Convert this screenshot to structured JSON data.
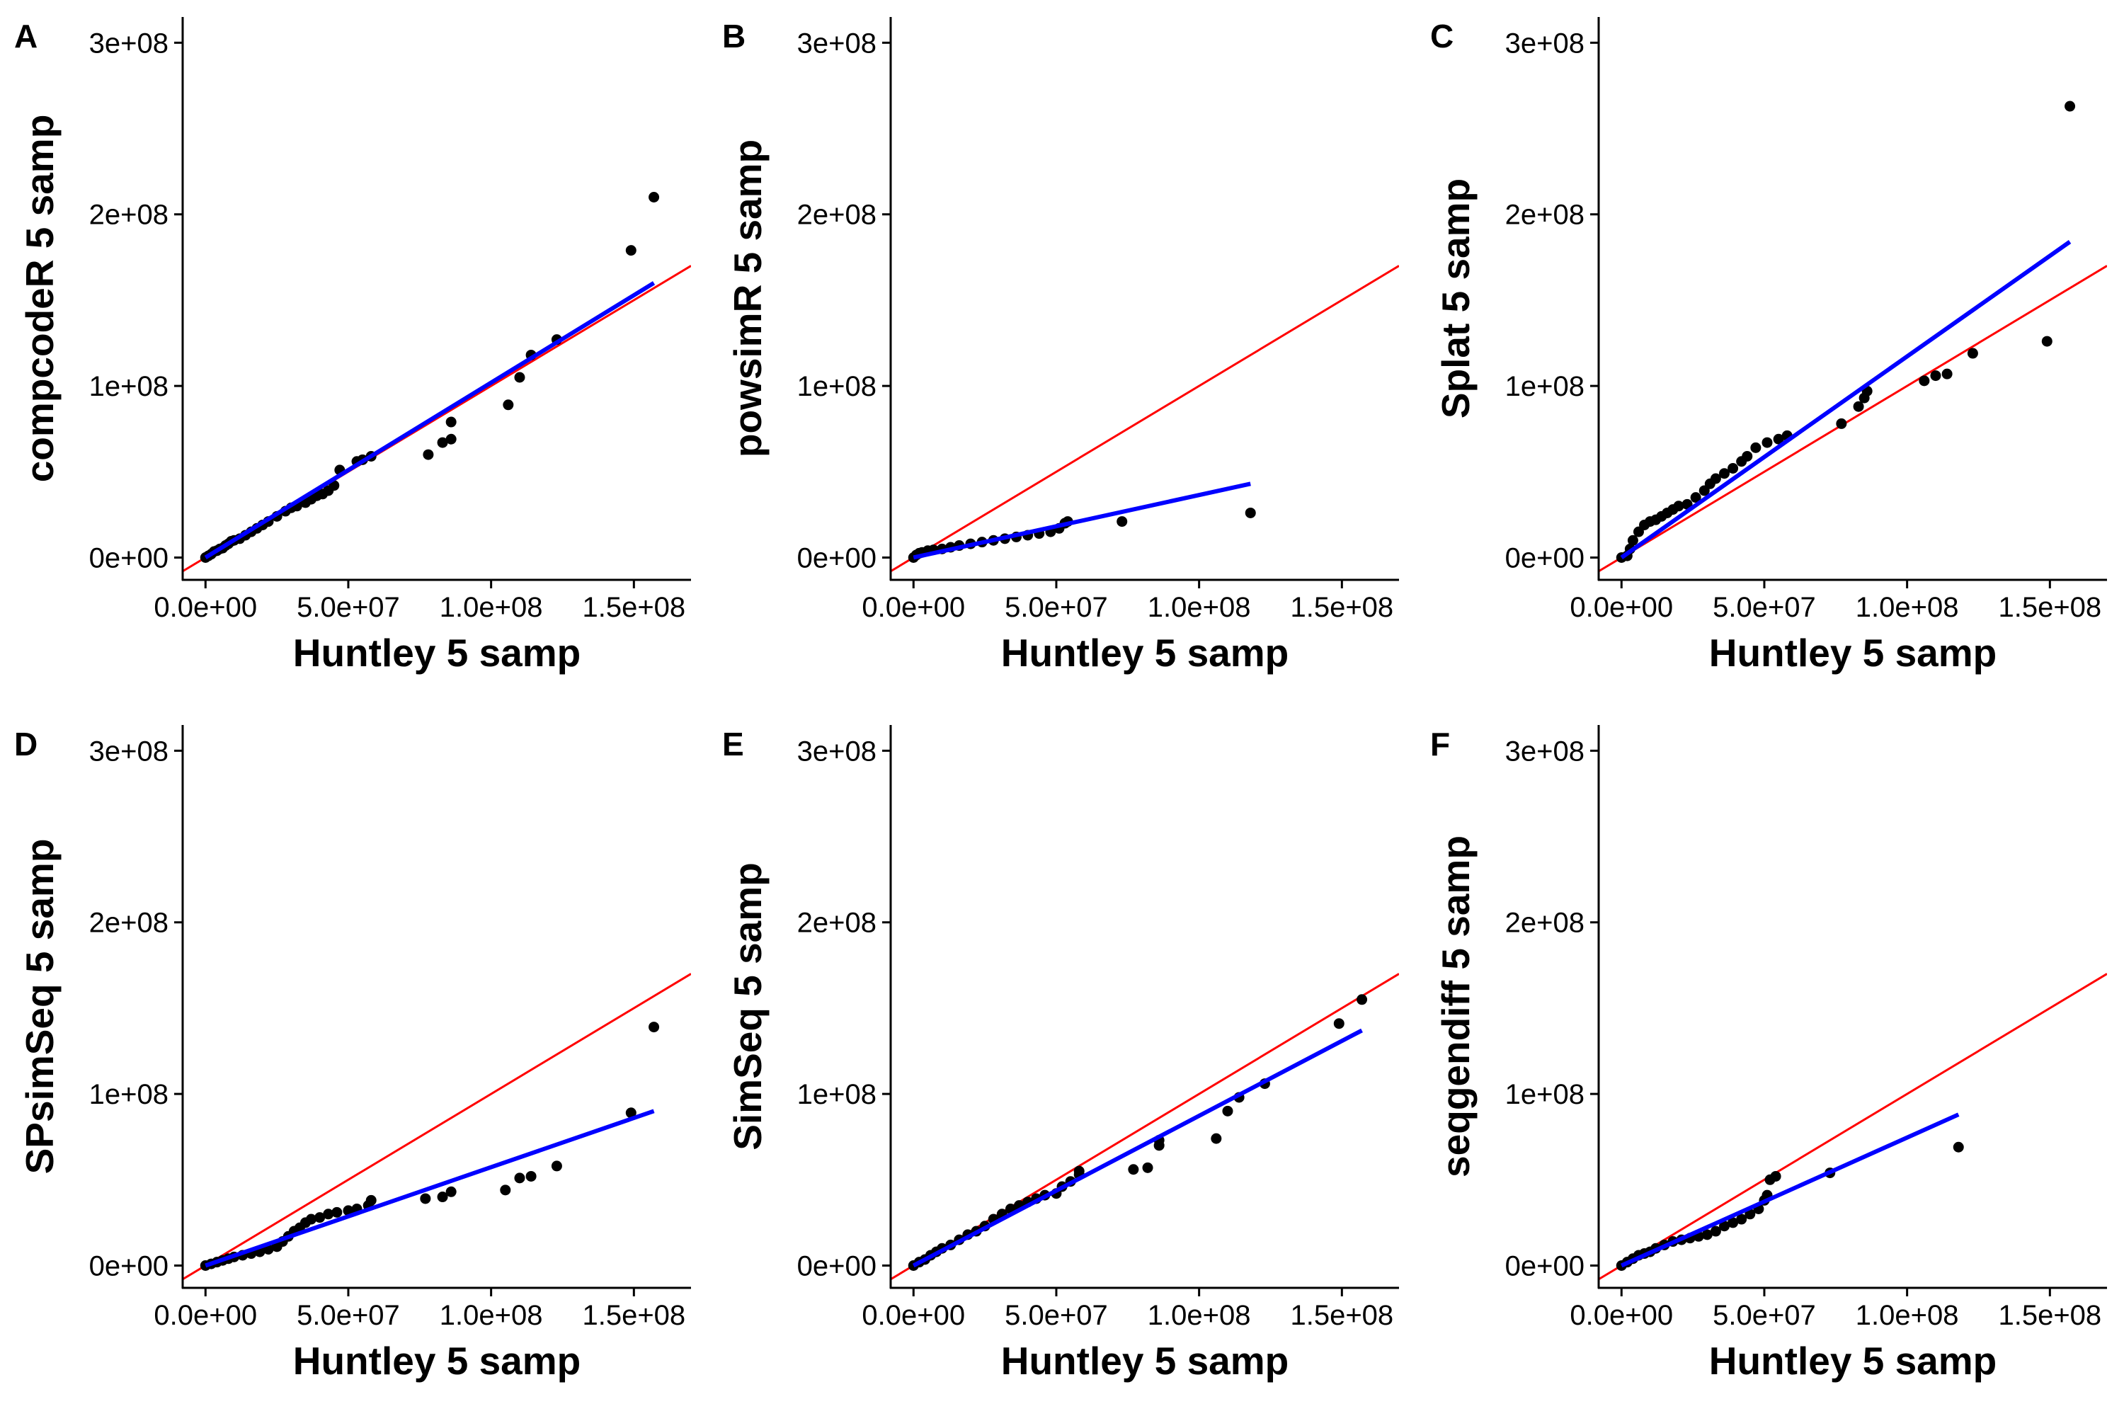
{
  "colors": {
    "identity_line": "#ff0000",
    "fit_line": "#0000ff",
    "points": "#000000",
    "axis": "#000000",
    "background": "#ffffff"
  },
  "chart_data": [
    {
      "panel": "A",
      "type": "scatter",
      "xlabel": "Huntley 5 samp",
      "ylabel": "compcodeR 5 samp",
      "xlim": [
        -8000000.0,
        170000000.0
      ],
      "ylim": [
        -13000000.0,
        315000000.0
      ],
      "xticks": [
        0,
        50000000.0,
        100000000.0,
        150000000.0
      ],
      "xtick_labels": [
        "0.0e+00",
        "5.0e+07",
        "1.0e+08",
        "1.5e+08"
      ],
      "yticks": [
        0,
        100000000.0,
        200000000.0,
        300000000.0
      ],
      "ytick_labels": [
        "0e+00",
        "1e+08",
        "2e+08",
        "3e+08"
      ],
      "grid": false,
      "reference_line": {
        "intercept": 0,
        "slope": 1
      },
      "fit_line": {
        "x": [
          0,
          157000000.0
        ],
        "y": [
          0,
          160000000.0
        ]
      },
      "points": [
        [
          0,
          0
        ],
        [
          1000000.0,
          1000000.0
        ],
        [
          2000000.0,
          2000000.0
        ],
        [
          3000000.0,
          3500000.0
        ],
        [
          4000000.0,
          4000000.0
        ],
        [
          5000000.0,
          5000000.0
        ],
        [
          6000000.0,
          5500000.0
        ],
        [
          7000000.0,
          7000000.0
        ],
        [
          8000000.0,
          8000000.0
        ],
        [
          9000000.0,
          9500000.0
        ],
        [
          10000000.0,
          10000000.0
        ],
        [
          12000000.0,
          11000000.0
        ],
        [
          14000000.0,
          13000000.0
        ],
        [
          16000000.0,
          15000000.0
        ],
        [
          18000000.0,
          17000000.0
        ],
        [
          20000000.0,
          19000000.0
        ],
        [
          22000000.0,
          21000000.0
        ],
        [
          25000000.0,
          24000000.0
        ],
        [
          28000000.0,
          27000000.0
        ],
        [
          30000000.0,
          29000000.0
        ],
        [
          32000000.0,
          30000000.0
        ],
        [
          35000000.0,
          32000000.0
        ],
        [
          37000000.0,
          34000000.0
        ],
        [
          39000000.0,
          36000000.0
        ],
        [
          41000000.0,
          37000000.0
        ],
        [
          43000000.0,
          39000000.0
        ],
        [
          45000000.0,
          42000000.0
        ],
        [
          47000000.0,
          51000000.0
        ],
        [
          53000000.0,
          56000000.0
        ],
        [
          55000000.0,
          57000000.0
        ],
        [
          58000000.0,
          59000000.0
        ],
        [
          78000000.0,
          60000000.0
        ],
        [
          83000000.0,
          67000000.0
        ],
        [
          86000000.0,
          69000000.0
        ],
        [
          86000000.0,
          79000000.0
        ],
        [
          106000000.0,
          89000000.0
        ],
        [
          110000000.0,
          105000000.0
        ],
        [
          114000000.0,
          118000000.0
        ],
        [
          123000000.0,
          127000000.0
        ],
        [
          149000000.0,
          179000000.0
        ],
        [
          157000000.0,
          210000000.0
        ]
      ]
    },
    {
      "panel": "B",
      "type": "scatter",
      "xlabel": "Huntley 5 samp",
      "ylabel": "powsimR 5 samp",
      "xlim": [
        -8000000.0,
        170000000.0
      ],
      "ylim": [
        -13000000.0,
        315000000.0
      ],
      "xticks": [
        0,
        50000000.0,
        100000000.0,
        150000000.0
      ],
      "xtick_labels": [
        "0.0e+00",
        "5.0e+07",
        "1.0e+08",
        "1.5e+08"
      ],
      "yticks": [
        0,
        100000000.0,
        200000000.0,
        300000000.0
      ],
      "ytick_labels": [
        "0e+00",
        "1e+08",
        "2e+08",
        "3e+08"
      ],
      "grid": false,
      "reference_line": {
        "intercept": 0,
        "slope": 1
      },
      "fit_line": {
        "x": [
          0,
          118000000.0
        ],
        "y": [
          0,
          43000000.0
        ]
      },
      "points": [
        [
          0,
          0
        ],
        [
          1000000.0,
          1500000.0
        ],
        [
          2000000.0,
          2500000.0
        ],
        [
          3000000.0,
          3000000.0
        ],
        [
          5000000.0,
          4000000.0
        ],
        [
          7000000.0,
          4500000.0
        ],
        [
          10000000.0,
          5000000.0
        ],
        [
          13000000.0,
          6000000.0
        ],
        [
          16000000.0,
          7000000.0
        ],
        [
          20000000.0,
          8000000.0
        ],
        [
          24000000.0,
          9000000.0
        ],
        [
          28000000.0,
          10000000.0
        ],
        [
          32000000.0,
          11000000.0
        ],
        [
          36000000.0,
          12000000.0
        ],
        [
          40000000.0,
          13000000.0
        ],
        [
          44000000.0,
          14000000.0
        ],
        [
          48000000.0,
          15000000.0
        ],
        [
          51000000.0,
          17000000.0
        ],
        [
          53000000.0,
          20000000.0
        ],
        [
          54000000.0,
          21000000.0
        ],
        [
          73000000.0,
          21000000.0
        ],
        [
          118000000.0,
          26000000.0
        ]
      ]
    },
    {
      "panel": "C",
      "type": "scatter",
      "xlabel": "Huntley 5 samp",
      "ylabel": "Splat 5 samp",
      "xlim": [
        -8000000.0,
        170000000.0
      ],
      "ylim": [
        -13000000.0,
        315000000.0
      ],
      "xticks": [
        0,
        50000000.0,
        100000000.0,
        150000000.0
      ],
      "xtick_labels": [
        "0.0e+00",
        "5.0e+07",
        "1.0e+08",
        "1.5e+08"
      ],
      "yticks": [
        0,
        100000000.0,
        200000000.0,
        300000000.0
      ],
      "ytick_labels": [
        "0e+00",
        "1e+08",
        "2e+08",
        "3e+08"
      ],
      "grid": false,
      "reference_line": {
        "intercept": 0,
        "slope": 1
      },
      "fit_line": {
        "x": [
          0,
          157000000.0
        ],
        "y": [
          0,
          184000000.0
        ]
      },
      "points": [
        [
          0,
          0
        ],
        [
          2000000.0,
          1000000.0
        ],
        [
          3000000.0,
          5000000.0
        ],
        [
          4000000.0,
          10000000.0
        ],
        [
          6000000.0,
          15000000.0
        ],
        [
          8000000.0,
          19000000.0
        ],
        [
          10000000.0,
          21000000.0
        ],
        [
          12000000.0,
          22000000.0
        ],
        [
          14000000.0,
          24000000.0
        ],
        [
          16000000.0,
          26000000.0
        ],
        [
          18000000.0,
          28000000.0
        ],
        [
          20000000.0,
          30000000.0
        ],
        [
          23000000.0,
          31000000.0
        ],
        [
          26000000.0,
          35000000.0
        ],
        [
          29000000.0,
          39000000.0
        ],
        [
          31000000.0,
          43000000.0
        ],
        [
          33000000.0,
          46000000.0
        ],
        [
          36000000.0,
          49000000.0
        ],
        [
          39000000.0,
          52000000.0
        ],
        [
          42000000.0,
          56000000.0
        ],
        [
          44000000.0,
          59000000.0
        ],
        [
          47000000.0,
          64000000.0
        ],
        [
          51000000.0,
          67000000.0
        ],
        [
          55000000.0,
          69000000.0
        ],
        [
          58000000.0,
          71000000.0
        ],
        [
          77000000.0,
          78000000.0
        ],
        [
          83000000.0,
          88000000.0
        ],
        [
          85000000.0,
          93000000.0
        ],
        [
          86000000.0,
          97000000.0
        ],
        [
          106000000.0,
          103000000.0
        ],
        [
          110000000.0,
          106000000.0
        ],
        [
          114000000.0,
          107000000.0
        ],
        [
          123000000.0,
          119000000.0
        ],
        [
          149000000.0,
          126000000.0
        ],
        [
          157000000.0,
          263000000.0
        ]
      ]
    },
    {
      "panel": "D",
      "type": "scatter",
      "xlabel": "Huntley 5 samp",
      "ylabel": "SPsimSeq 5 samp",
      "xlim": [
        -8000000.0,
        170000000.0
      ],
      "ylim": [
        -13000000.0,
        315000000.0
      ],
      "xticks": [
        0,
        50000000.0,
        100000000.0,
        150000000.0
      ],
      "xtick_labels": [
        "0.0e+00",
        "5.0e+07",
        "1.0e+08",
        "1.5e+08"
      ],
      "yticks": [
        0,
        100000000.0,
        200000000.0,
        300000000.0
      ],
      "ytick_labels": [
        "0e+00",
        "1e+08",
        "2e+08",
        "3e+08"
      ],
      "grid": false,
      "reference_line": {
        "intercept": 0,
        "slope": 1
      },
      "fit_line": {
        "x": [
          0,
          157000000.0
        ],
        "y": [
          0,
          90000000.0
        ]
      },
      "points": [
        [
          0,
          0
        ],
        [
          2000000.0,
          1000000.0
        ],
        [
          4000000.0,
          2000000.0
        ],
        [
          6000000.0,
          3000000.0
        ],
        [
          8000000.0,
          4000000.0
        ],
        [
          10000000.0,
          5000000.0
        ],
        [
          13000000.0,
          6000000.0
        ],
        [
          16000000.0,
          7000000.0
        ],
        [
          19000000.0,
          8000000.0
        ],
        [
          22000000.0,
          9500000.0
        ],
        [
          25000000.0,
          11000000.0
        ],
        [
          27000000.0,
          14000000.0
        ],
        [
          29000000.0,
          17000000.0
        ],
        [
          31000000.0,
          20000000.0
        ],
        [
          33000000.0,
          22000000.0
        ],
        [
          35000000.0,
          25000000.0
        ],
        [
          37000000.0,
          27000000.0
        ],
        [
          40000000.0,
          28000000.0
        ],
        [
          43000000.0,
          30000000.0
        ],
        [
          46000000.0,
          31000000.0
        ],
        [
          50000000.0,
          32000000.0
        ],
        [
          53000000.0,
          33000000.0
        ],
        [
          57000000.0,
          35000000.0
        ],
        [
          58000000.0,
          38000000.0
        ],
        [
          77000000.0,
          39000000.0
        ],
        [
          83000000.0,
          40000000.0
        ],
        [
          86000000.0,
          43000000.0
        ],
        [
          105000000.0,
          44000000.0
        ],
        [
          110000000.0,
          51000000.0
        ],
        [
          114000000.0,
          52000000.0
        ],
        [
          123000000.0,
          58000000.0
        ],
        [
          149000000.0,
          89000000.0
        ],
        [
          157000000.0,
          139000000.0
        ]
      ]
    },
    {
      "panel": "E",
      "type": "scatter",
      "xlabel": "Huntley 5 samp",
      "ylabel": "SimSeq 5 samp",
      "xlim": [
        -8000000.0,
        170000000.0
      ],
      "ylim": [
        -13000000.0,
        315000000.0
      ],
      "xticks": [
        0,
        50000000.0,
        100000000.0,
        150000000.0
      ],
      "xtick_labels": [
        "0.0e+00",
        "5.0e+07",
        "1.0e+08",
        "1.5e+08"
      ],
      "yticks": [
        0,
        100000000.0,
        200000000.0,
        300000000.0
      ],
      "ytick_labels": [
        "0e+00",
        "1e+08",
        "2e+08",
        "3e+08"
      ],
      "grid": false,
      "reference_line": {
        "intercept": 0,
        "slope": 1
      },
      "fit_line": {
        "x": [
          0,
          157000000.0
        ],
        "y": [
          0,
          137000000.0
        ]
      },
      "points": [
        [
          0,
          0
        ],
        [
          2000000.0,
          2000000.0
        ],
        [
          4000000.0,
          3500000.0
        ],
        [
          6000000.0,
          6000000.0
        ],
        [
          8000000.0,
          8000000.0
        ],
        [
          10000000.0,
          10000000.0
        ],
        [
          13000000.0,
          12000000.0
        ],
        [
          16000000.0,
          15000000.0
        ],
        [
          19000000.0,
          18000000.0
        ],
        [
          22000000.0,
          20000000.0
        ],
        [
          25000000.0,
          23000000.0
        ],
        [
          28000000.0,
          27000000.0
        ],
        [
          31000000.0,
          30000000.0
        ],
        [
          34000000.0,
          33000000.0
        ],
        [
          37000000.0,
          35000000.0
        ],
        [
          40000000.0,
          37000000.0
        ],
        [
          43000000.0,
          39000000.0
        ],
        [
          46000000.0,
          41000000.0
        ],
        [
          50000000.0,
          42000000.0
        ],
        [
          52000000.0,
          46000000.0
        ],
        [
          55000000.0,
          49000000.0
        ],
        [
          58000000.0,
          53000000.0
        ],
        [
          58000000.0,
          55000000.0
        ],
        [
          77000000.0,
          56000000.0
        ],
        [
          82000000.0,
          57000000.0
        ],
        [
          86000000.0,
          70000000.0
        ],
        [
          86000000.0,
          73000000.0
        ],
        [
          106000000.0,
          74000000.0
        ],
        [
          110000000.0,
          90000000.0
        ],
        [
          114000000.0,
          98000000.0
        ],
        [
          123000000.0,
          106000000.0
        ],
        [
          149000000.0,
          141000000.0
        ],
        [
          157000000.0,
          155000000.0
        ]
      ]
    },
    {
      "panel": "F",
      "type": "scatter",
      "xlabel": "Huntley 5 samp",
      "ylabel": "seqgendiff 5 samp",
      "xlim": [
        -8000000.0,
        170000000.0
      ],
      "ylim": [
        -13000000.0,
        315000000.0
      ],
      "xticks": [
        0,
        50000000.0,
        100000000.0,
        150000000.0
      ],
      "xtick_labels": [
        "0.0e+00",
        "5.0e+07",
        "1.0e+08",
        "1.5e+08"
      ],
      "yticks": [
        0,
        100000000.0,
        200000000.0,
        300000000.0
      ],
      "ytick_labels": [
        "0e+00",
        "1e+08",
        "2e+08",
        "3e+08"
      ],
      "grid": false,
      "reference_line": {
        "intercept": 0,
        "slope": 1
      },
      "fit_line": {
        "x": [
          0,
          118000000.0
        ],
        "y": [
          0,
          88000000.0
        ]
      },
      "points": [
        [
          0,
          0
        ],
        [
          2000000.0,
          2000000.0
        ],
        [
          4000000.0,
          4000000.0
        ],
        [
          6000000.0,
          6000000.0
        ],
        [
          8000000.0,
          7000000.0
        ],
        [
          10000000.0,
          8000000.0
        ],
        [
          12000000.0,
          10000000.0
        ],
        [
          15000000.0,
          12000000.0
        ],
        [
          18000000.0,
          14000000.0
        ],
        [
          21000000.0,
          15000000.0
        ],
        [
          24000000.0,
          16000000.0
        ],
        [
          27000000.0,
          17000000.0
        ],
        [
          30000000.0,
          18000000.0
        ],
        [
          33000000.0,
          20000000.0
        ],
        [
          36000000.0,
          23000000.0
        ],
        [
          39000000.0,
          25000000.0
        ],
        [
          42000000.0,
          27000000.0
        ],
        [
          45000000.0,
          30000000.0
        ],
        [
          48000000.0,
          33000000.0
        ],
        [
          50000000.0,
          38000000.0
        ],
        [
          51000000.0,
          41000000.0
        ],
        [
          52000000.0,
          50000000.0
        ],
        [
          54000000.0,
          52000000.0
        ],
        [
          73000000.0,
          54000000.0
        ],
        [
          118000000.0,
          69000000.0
        ]
      ]
    }
  ]
}
